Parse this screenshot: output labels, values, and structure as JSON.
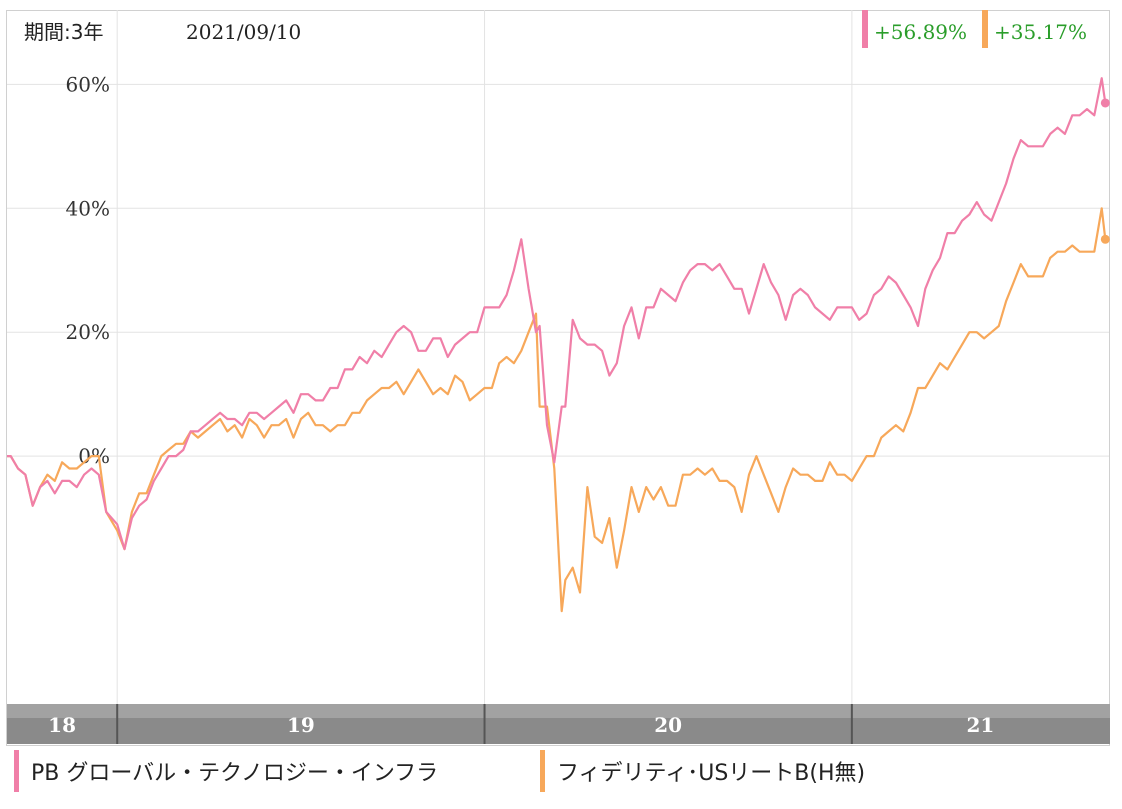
{
  "header": {
    "period_label": "期間:3年",
    "date_label": "2021/09/10"
  },
  "colors": {
    "series0": "#f07fa8",
    "series1": "#f7a85a",
    "positive_text": "#2a9d2a",
    "grid": "#e3e3e3",
    "axis_bar": "#8a8a8a"
  },
  "chart_data": {
    "type": "line",
    "ylim": [
      -40,
      72
    ],
    "yticks": [
      0,
      20,
      40,
      60
    ],
    "ytick_labels": [
      "0%",
      "20%",
      "40%",
      "60%"
    ],
    "xlim": [
      2018.7,
      2021.7
    ],
    "xticks": [
      2019,
      2020,
      2021
    ],
    "year_labels": [
      "18",
      "19",
      "20",
      "21"
    ],
    "grid": true,
    "legend_position": "bottom",
    "series": [
      {
        "name": "PB グローバル・テクノロジー・インフラ",
        "return_label": "+56.89%",
        "points": [
          [
            2018.7,
            0
          ],
          [
            2018.71,
            0
          ],
          [
            2018.73,
            -2
          ],
          [
            2018.75,
            -3
          ],
          [
            2018.77,
            -8
          ],
          [
            2018.79,
            -5
          ],
          [
            2018.81,
            -4
          ],
          [
            2018.83,
            -6
          ],
          [
            2018.85,
            -4
          ],
          [
            2018.87,
            -4
          ],
          [
            2018.89,
            -5
          ],
          [
            2018.91,
            -3
          ],
          [
            2018.93,
            -2
          ],
          [
            2018.95,
            -3
          ],
          [
            2018.97,
            -9
          ],
          [
            2019.0,
            -11
          ],
          [
            2019.02,
            -15
          ],
          [
            2019.04,
            -10
          ],
          [
            2019.06,
            -8
          ],
          [
            2019.08,
            -7
          ],
          [
            2019.1,
            -4
          ],
          [
            2019.12,
            -2
          ],
          [
            2019.14,
            0
          ],
          [
            2019.16,
            0
          ],
          [
            2019.18,
            1
          ],
          [
            2019.2,
            4
          ],
          [
            2019.22,
            4
          ],
          [
            2019.24,
            5
          ],
          [
            2019.26,
            6
          ],
          [
            2019.28,
            7
          ],
          [
            2019.3,
            6
          ],
          [
            2019.32,
            6
          ],
          [
            2019.34,
            5
          ],
          [
            2019.36,
            7
          ],
          [
            2019.38,
            7
          ],
          [
            2019.4,
            6
          ],
          [
            2019.42,
            7
          ],
          [
            2019.44,
            8
          ],
          [
            2019.46,
            9
          ],
          [
            2019.48,
            7
          ],
          [
            2019.5,
            10
          ],
          [
            2019.52,
            10
          ],
          [
            2019.54,
            9
          ],
          [
            2019.56,
            9
          ],
          [
            2019.58,
            11
          ],
          [
            2019.6,
            11
          ],
          [
            2019.62,
            14
          ],
          [
            2019.64,
            14
          ],
          [
            2019.66,
            16
          ],
          [
            2019.68,
            15
          ],
          [
            2019.7,
            17
          ],
          [
            2019.72,
            16
          ],
          [
            2019.74,
            18
          ],
          [
            2019.76,
            20
          ],
          [
            2019.78,
            21
          ],
          [
            2019.8,
            20
          ],
          [
            2019.82,
            17
          ],
          [
            2019.84,
            17
          ],
          [
            2019.86,
            19
          ],
          [
            2019.88,
            19
          ],
          [
            2019.9,
            16
          ],
          [
            2019.92,
            18
          ],
          [
            2019.94,
            19
          ],
          [
            2019.96,
            20
          ],
          [
            2019.98,
            20
          ],
          [
            2020.0,
            24
          ],
          [
            2020.02,
            24
          ],
          [
            2020.04,
            24
          ],
          [
            2020.06,
            26
          ],
          [
            2020.08,
            30
          ],
          [
            2020.1,
            35
          ],
          [
            2020.12,
            27
          ],
          [
            2020.14,
            20
          ],
          [
            2020.15,
            21
          ],
          [
            2020.17,
            5
          ],
          [
            2020.19,
            -1
          ],
          [
            2020.21,
            8
          ],
          [
            2020.22,
            8
          ],
          [
            2020.24,
            22
          ],
          [
            2020.26,
            19
          ],
          [
            2020.28,
            18
          ],
          [
            2020.3,
            18
          ],
          [
            2020.32,
            17
          ],
          [
            2020.34,
            13
          ],
          [
            2020.36,
            15
          ],
          [
            2020.38,
            21
          ],
          [
            2020.4,
            24
          ],
          [
            2020.42,
            19
          ],
          [
            2020.44,
            24
          ],
          [
            2020.46,
            24
          ],
          [
            2020.48,
            27
          ],
          [
            2020.5,
            26
          ],
          [
            2020.52,
            25
          ],
          [
            2020.54,
            28
          ],
          [
            2020.56,
            30
          ],
          [
            2020.58,
            31
          ],
          [
            2020.6,
            31
          ],
          [
            2020.62,
            30
          ],
          [
            2020.64,
            31
          ],
          [
            2020.66,
            29
          ],
          [
            2020.68,
            27
          ],
          [
            2020.7,
            27
          ],
          [
            2020.72,
            23
          ],
          [
            2020.74,
            27
          ],
          [
            2020.76,
            31
          ],
          [
            2020.78,
            28
          ],
          [
            2020.8,
            26
          ],
          [
            2020.82,
            22
          ],
          [
            2020.84,
            26
          ],
          [
            2020.86,
            27
          ],
          [
            2020.88,
            26
          ],
          [
            2020.9,
            24
          ],
          [
            2020.92,
            23
          ],
          [
            2020.94,
            22
          ],
          [
            2020.96,
            24
          ],
          [
            2020.98,
            24
          ],
          [
            2021.0,
            24
          ],
          [
            2021.02,
            22
          ],
          [
            2021.04,
            23
          ],
          [
            2021.06,
            26
          ],
          [
            2021.08,
            27
          ],
          [
            2021.1,
            29
          ],
          [
            2021.12,
            28
          ],
          [
            2021.14,
            26
          ],
          [
            2021.16,
            24
          ],
          [
            2021.18,
            21
          ],
          [
            2021.2,
            27
          ],
          [
            2021.22,
            30
          ],
          [
            2021.24,
            32
          ],
          [
            2021.26,
            36
          ],
          [
            2021.28,
            36
          ],
          [
            2021.3,
            38
          ],
          [
            2021.32,
            39
          ],
          [
            2021.34,
            41
          ],
          [
            2021.36,
            39
          ],
          [
            2021.38,
            38
          ],
          [
            2021.4,
            41
          ],
          [
            2021.42,
            44
          ],
          [
            2021.44,
            48
          ],
          [
            2021.46,
            51
          ],
          [
            2021.48,
            50
          ],
          [
            2021.5,
            50
          ],
          [
            2021.52,
            50
          ],
          [
            2021.54,
            52
          ],
          [
            2021.56,
            53
          ],
          [
            2021.58,
            52
          ],
          [
            2021.6,
            55
          ],
          [
            2021.62,
            55
          ],
          [
            2021.64,
            56
          ],
          [
            2021.66,
            55
          ],
          [
            2021.68,
            61
          ],
          [
            2021.69,
            57
          ]
        ]
      },
      {
        "name": "フィデリティ･USリートB(H無)",
        "return_label": "+35.17%",
        "points": [
          [
            2018.7,
            0
          ],
          [
            2018.71,
            0
          ],
          [
            2018.73,
            -2
          ],
          [
            2018.75,
            -3
          ],
          [
            2018.77,
            -8
          ],
          [
            2018.79,
            -5
          ],
          [
            2018.81,
            -3
          ],
          [
            2018.83,
            -4
          ],
          [
            2018.85,
            -1
          ],
          [
            2018.87,
            -2
          ],
          [
            2018.89,
            -2
          ],
          [
            2018.91,
            -1
          ],
          [
            2018.93,
            0
          ],
          [
            2018.95,
            0
          ],
          [
            2018.97,
            -9
          ],
          [
            2019.0,
            -12
          ],
          [
            2019.02,
            -15
          ],
          [
            2019.04,
            -9
          ],
          [
            2019.06,
            -6
          ],
          [
            2019.08,
            -6
          ],
          [
            2019.1,
            -3
          ],
          [
            2019.12,
            0
          ],
          [
            2019.14,
            1
          ],
          [
            2019.16,
            2
          ],
          [
            2019.18,
            2
          ],
          [
            2019.2,
            4
          ],
          [
            2019.22,
            3
          ],
          [
            2019.24,
            4
          ],
          [
            2019.26,
            5
          ],
          [
            2019.28,
            6
          ],
          [
            2019.3,
            4
          ],
          [
            2019.32,
            5
          ],
          [
            2019.34,
            3
          ],
          [
            2019.36,
            6
          ],
          [
            2019.38,
            5
          ],
          [
            2019.4,
            3
          ],
          [
            2019.42,
            5
          ],
          [
            2019.44,
            5
          ],
          [
            2019.46,
            6
          ],
          [
            2019.48,
            3
          ],
          [
            2019.5,
            6
          ],
          [
            2019.52,
            7
          ],
          [
            2019.54,
            5
          ],
          [
            2019.56,
            5
          ],
          [
            2019.58,
            4
          ],
          [
            2019.6,
            5
          ],
          [
            2019.62,
            5
          ],
          [
            2019.64,
            7
          ],
          [
            2019.66,
            7
          ],
          [
            2019.68,
            9
          ],
          [
            2019.7,
            10
          ],
          [
            2019.72,
            11
          ],
          [
            2019.74,
            11
          ],
          [
            2019.76,
            12
          ],
          [
            2019.78,
            10
          ],
          [
            2019.8,
            12
          ],
          [
            2019.82,
            14
          ],
          [
            2019.84,
            12
          ],
          [
            2019.86,
            10
          ],
          [
            2019.88,
            11
          ],
          [
            2019.9,
            10
          ],
          [
            2019.92,
            13
          ],
          [
            2019.94,
            12
          ],
          [
            2019.96,
            9
          ],
          [
            2019.98,
            10
          ],
          [
            2020.0,
            11
          ],
          [
            2020.02,
            11
          ],
          [
            2020.04,
            15
          ],
          [
            2020.06,
            16
          ],
          [
            2020.08,
            15
          ],
          [
            2020.1,
            17
          ],
          [
            2020.12,
            20
          ],
          [
            2020.14,
            23
          ],
          [
            2020.15,
            8
          ],
          [
            2020.17,
            8
          ],
          [
            2020.19,
            -2
          ],
          [
            2020.21,
            -25
          ],
          [
            2020.22,
            -20
          ],
          [
            2020.24,
            -18
          ],
          [
            2020.26,
            -22
          ],
          [
            2020.28,
            -5
          ],
          [
            2020.3,
            -13
          ],
          [
            2020.32,
            -14
          ],
          [
            2020.34,
            -10
          ],
          [
            2020.36,
            -18
          ],
          [
            2020.38,
            -12
          ],
          [
            2020.4,
            -5
          ],
          [
            2020.42,
            -9
          ],
          [
            2020.44,
            -5
          ],
          [
            2020.46,
            -7
          ],
          [
            2020.48,
            -5
          ],
          [
            2020.5,
            -8
          ],
          [
            2020.52,
            -8
          ],
          [
            2020.54,
            -3
          ],
          [
            2020.56,
            -3
          ],
          [
            2020.58,
            -2
          ],
          [
            2020.6,
            -3
          ],
          [
            2020.62,
            -2
          ],
          [
            2020.64,
            -4
          ],
          [
            2020.66,
            -4
          ],
          [
            2020.68,
            -5
          ],
          [
            2020.7,
            -9
          ],
          [
            2020.72,
            -3
          ],
          [
            2020.74,
            0
          ],
          [
            2020.76,
            -3
          ],
          [
            2020.78,
            -6
          ],
          [
            2020.8,
            -9
          ],
          [
            2020.82,
            -5
          ],
          [
            2020.84,
            -2
          ],
          [
            2020.86,
            -3
          ],
          [
            2020.88,
            -3
          ],
          [
            2020.9,
            -4
          ],
          [
            2020.92,
            -4
          ],
          [
            2020.94,
            -1
          ],
          [
            2020.96,
            -3
          ],
          [
            2020.98,
            -3
          ],
          [
            2021.0,
            -4
          ],
          [
            2021.02,
            -2
          ],
          [
            2021.04,
            0
          ],
          [
            2021.06,
            0
          ],
          [
            2021.08,
            3
          ],
          [
            2021.1,
            4
          ],
          [
            2021.12,
            5
          ],
          [
            2021.14,
            4
          ],
          [
            2021.16,
            7
          ],
          [
            2021.18,
            11
          ],
          [
            2021.2,
            11
          ],
          [
            2021.22,
            13
          ],
          [
            2021.24,
            15
          ],
          [
            2021.26,
            14
          ],
          [
            2021.28,
            16
          ],
          [
            2021.3,
            18
          ],
          [
            2021.32,
            20
          ],
          [
            2021.34,
            20
          ],
          [
            2021.36,
            19
          ],
          [
            2021.38,
            20
          ],
          [
            2021.4,
            21
          ],
          [
            2021.42,
            25
          ],
          [
            2021.44,
            28
          ],
          [
            2021.46,
            31
          ],
          [
            2021.48,
            29
          ],
          [
            2021.5,
            29
          ],
          [
            2021.52,
            29
          ],
          [
            2021.54,
            32
          ],
          [
            2021.56,
            33
          ],
          [
            2021.58,
            33
          ],
          [
            2021.6,
            34
          ],
          [
            2021.62,
            33
          ],
          [
            2021.64,
            33
          ],
          [
            2021.66,
            33
          ],
          [
            2021.68,
            40
          ],
          [
            2021.69,
            35
          ]
        ]
      }
    ]
  }
}
